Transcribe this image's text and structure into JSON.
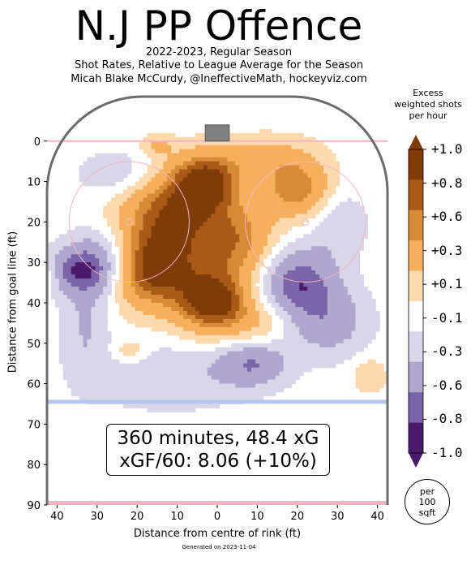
{
  "header": {
    "title": "N.J PP Offence",
    "subtitle_1": "2022-2023, Regular Season",
    "subtitle_2": "Shot Rates, Relative to League Average for the Season",
    "subtitle_3": "Micah Blake McCurdy, @IneffectiveMath, hockeyviz.com"
  },
  "legend": {
    "title_1": "Excess",
    "title_2": "weighted shots",
    "title_3": "per hour",
    "per_1": "per",
    "per_2": "100",
    "per_3": "sqft"
  },
  "info": {
    "line_1": "360 minutes, 48.4 xG",
    "line_2": "xGF/60: 8.06 (+10%)"
  },
  "footer": {
    "generated": "Generated on 2023-11-04"
  },
  "colors": {
    "rink_border": "#6b6b6b",
    "goal_line": "#f4b6c2",
    "blue_line": "#b7c6ec",
    "net": "#808080"
  },
  "chart_data": {
    "type": "heatmap",
    "xlabel": "Distance from centre of rink (ft)",
    "ylabel": "Distance from goal line (ft)",
    "xlim": [
      -42.5,
      42.5
    ],
    "ylim": [
      90,
      -11
    ],
    "x_ticks": [
      -40,
      -30,
      -20,
      -10,
      0,
      10,
      20,
      30,
      40
    ],
    "x_tick_labels": [
      "40",
      "30",
      "20",
      "10",
      "0",
      "10",
      "20",
      "30",
      "40"
    ],
    "y_ticks": [
      0,
      10,
      20,
      30,
      40,
      50,
      60,
      70,
      80,
      90
    ],
    "y_tick_labels": [
      "0",
      "10",
      "20",
      "30",
      "40",
      "50",
      "60",
      "70",
      "80",
      "90"
    ],
    "colorbar": {
      "levels": [
        -1.0,
        -0.8,
        -0.6,
        -0.3,
        -0.1,
        0.1,
        0.3,
        0.6,
        0.8,
        1.0
      ],
      "tick_labels": [
        "+1.0",
        "+0.8",
        "+0.6",
        "+0.3",
        "+0.1",
        "-0.1",
        "-0.3",
        "-0.6",
        "-0.8",
        "-1.0"
      ],
      "colors": [
        "#4a1a6b",
        "#7b65a8",
        "#b0a7cf",
        "#d9d6ea",
        "#ffffff",
        "#fdd9ae",
        "#f6b05d",
        "#d98a36",
        "#a95a17",
        "#7f3b08"
      ]
    },
    "blobs": [
      {
        "x": -3,
        "y": 10,
        "sx": 6,
        "sy": 5,
        "v": 1.0
      },
      {
        "x": -12,
        "y": 18,
        "sx": 9,
        "sy": 7,
        "v": 0.75
      },
      {
        "x": -18,
        "y": 32,
        "sx": 7,
        "sy": 6,
        "v": 0.85
      },
      {
        "x": -1,
        "y": 40,
        "sx": 6,
        "sy": 5,
        "v": 1.0
      },
      {
        "x": -8,
        "y": 30,
        "sx": 10,
        "sy": 10,
        "v": 0.5
      },
      {
        "x": 6,
        "y": 25,
        "sx": 6,
        "sy": 7,
        "v": 0.55
      },
      {
        "x": 20,
        "y": 12,
        "sx": 6,
        "sy": 5,
        "v": 0.75
      },
      {
        "x": 12,
        "y": 4,
        "sx": 9,
        "sy": 4,
        "v": 0.35
      },
      {
        "x": 10,
        "y": 45,
        "sx": 6,
        "sy": 4,
        "v": 0.3
      },
      {
        "x": -36,
        "y": 32,
        "sx": 6,
        "sy": 4,
        "v": -0.55
      },
      {
        "x": -28,
        "y": 30,
        "sx": 6,
        "sy": 6,
        "v": -0.6
      },
      {
        "x": -12,
        "y": 58,
        "sx": 14,
        "sy": 6,
        "v": -0.3
      },
      {
        "x": -33,
        "y": 45,
        "sx": 4,
        "sy": 10,
        "v": -0.3
      },
      {
        "x": 20,
        "y": 35,
        "sx": 7,
        "sy": 6,
        "v": -0.75
      },
      {
        "x": 28,
        "y": 45,
        "sx": 7,
        "sy": 6,
        "v": -0.45
      },
      {
        "x": 9,
        "y": 55,
        "sx": 6,
        "sy": 4,
        "v": -0.55
      },
      {
        "x": -25,
        "y": 8,
        "sx": 7,
        "sy": 4,
        "v": -0.3
      },
      {
        "x": 30,
        "y": 20,
        "sx": 5,
        "sy": 6,
        "v": -0.3
      },
      {
        "x": 38,
        "y": 58,
        "sx": 3,
        "sy": 3,
        "v": 0.3
      },
      {
        "x": -22,
        "y": 52,
        "sx": 3,
        "sy": 2,
        "v": 0.3
      },
      {
        "x": -42,
        "y": 33,
        "sx": 2,
        "sy": 3,
        "v": 0.3
      },
      {
        "x": -15,
        "y": 1,
        "sx": 3,
        "sy": 2,
        "v": 0.3
      }
    ]
  }
}
